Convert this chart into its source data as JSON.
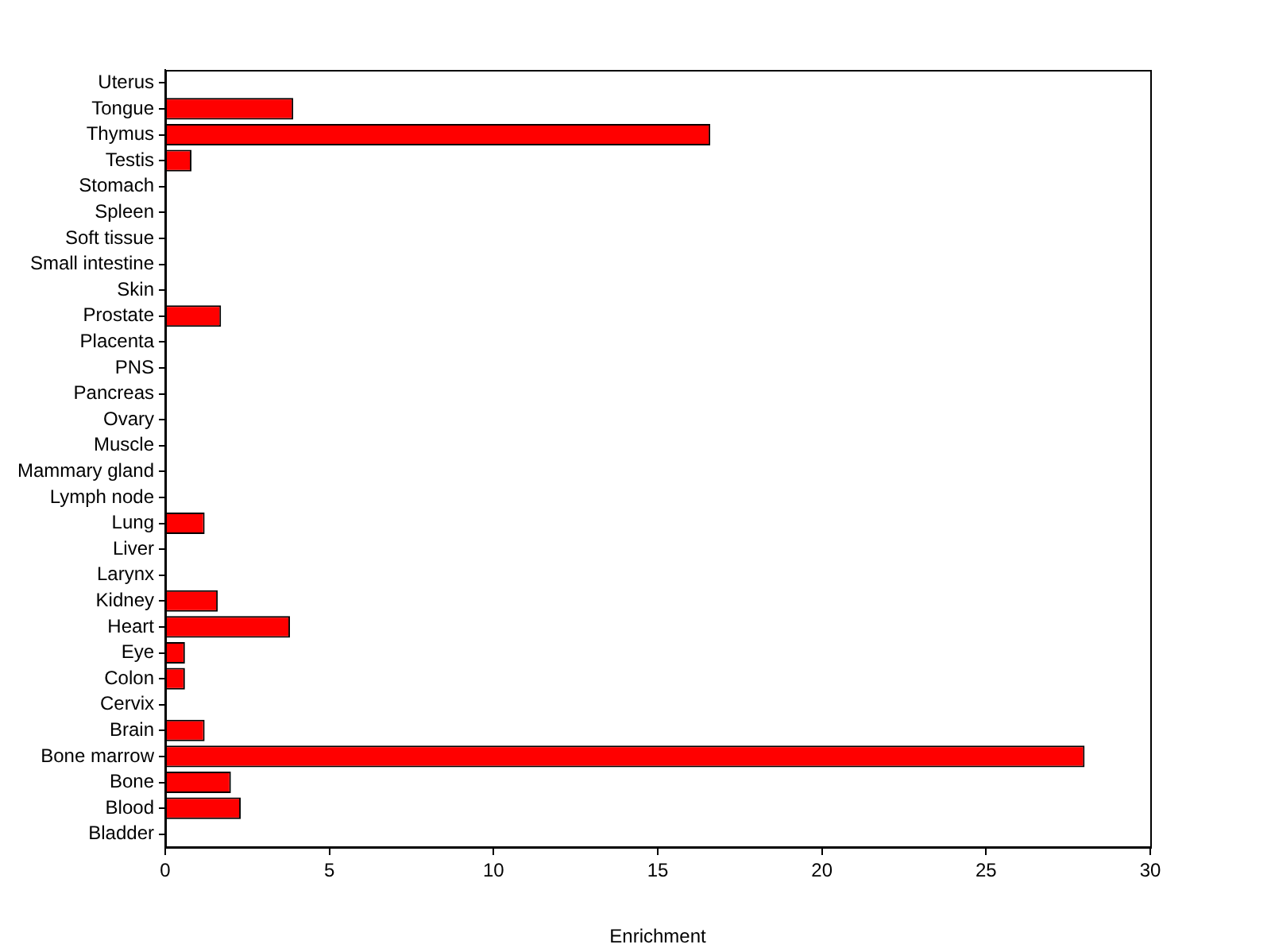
{
  "chart_data": {
    "type": "bar",
    "orientation": "horizontal",
    "xlabel": "Enrichment",
    "categories": [
      "Uterus",
      "Tongue",
      "Thymus",
      "Testis",
      "Stomach",
      "Spleen",
      "Soft tissue",
      "Small intestine",
      "Skin",
      "Prostate",
      "Placenta",
      "PNS",
      "Pancreas",
      "Ovary",
      "Muscle",
      "Mammary gland",
      "Lymph node",
      "Lung",
      "Liver",
      "Larynx",
      "Kidney",
      "Heart",
      "Eye",
      "Colon",
      "Cervix",
      "Brain",
      "Bone marrow",
      "Bone",
      "Blood",
      "Bladder"
    ],
    "values": [
      0,
      3.9,
      16.6,
      0.8,
      0,
      0,
      0,
      0,
      0,
      1.7,
      0,
      0,
      0,
      0,
      0,
      0,
      0,
      1.2,
      0,
      0,
      1.6,
      3.8,
      0.6,
      0.6,
      0,
      1.2,
      28,
      2,
      2.3,
      0
    ],
    "color": "#ff0000",
    "xlim": [
      0,
      30
    ],
    "xticks": [
      0,
      5,
      10,
      15,
      20,
      25,
      30
    ]
  }
}
